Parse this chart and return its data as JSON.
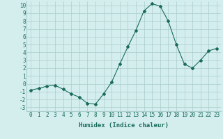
{
  "x": [
    0,
    1,
    2,
    3,
    4,
    5,
    6,
    7,
    8,
    9,
    10,
    11,
    12,
    13,
    14,
    15,
    16,
    17,
    18,
    19,
    20,
    21,
    22,
    23
  ],
  "y": [
    -0.8,
    -0.6,
    -0.3,
    -0.2,
    -0.7,
    -1.3,
    -1.7,
    -2.5,
    -2.6,
    -1.3,
    0.2,
    2.5,
    4.7,
    6.8,
    9.3,
    10.2,
    9.9,
    8.0,
    5.0,
    2.5,
    2.0,
    3.0,
    4.2,
    4.5
  ],
  "line_color": "#1a6b5a",
  "marker": "D",
  "marker_size": 2.0,
  "bg_color": "#d4eeee",
  "grid_color": "#aacccc",
  "xlabel": "Humidex (Indice chaleur)",
  "ylim": [
    -3.5,
    10.5
  ],
  "xlim": [
    -0.5,
    23.5
  ],
  "yticks": [
    -3,
    -2,
    -1,
    0,
    1,
    2,
    3,
    4,
    5,
    6,
    7,
    8,
    9,
    10
  ],
  "xticks": [
    0,
    1,
    2,
    3,
    4,
    5,
    6,
    7,
    8,
    9,
    10,
    11,
    12,
    13,
    14,
    15,
    16,
    17,
    18,
    19,
    20,
    21,
    22,
    23
  ],
  "tick_color": "#1a6b5a",
  "label_fontsize": 6.0,
  "tick_fontsize": 5.5,
  "xlabel_fontsize": 6.5
}
